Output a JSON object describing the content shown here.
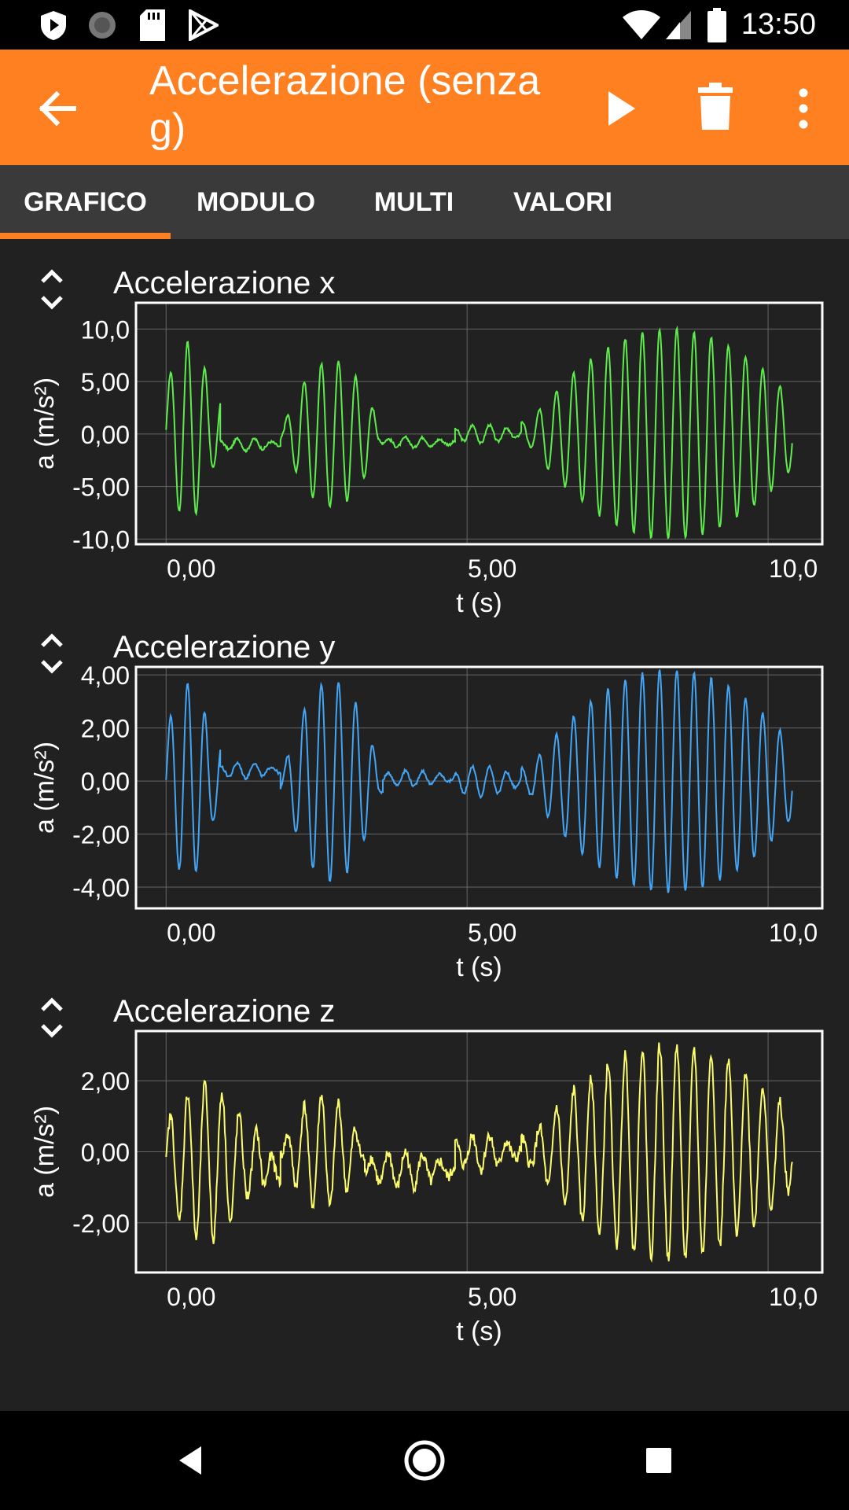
{
  "status_bar": {
    "time": "13:50",
    "icons": [
      "shield-icon",
      "spinner-icon",
      "sd-card-icon",
      "play-store-icon",
      "wifi-icon",
      "signal-icon",
      "battery-icon"
    ]
  },
  "toolbar": {
    "title": "Accelerazione (senza g)",
    "icons": [
      "back-arrow-icon",
      "play-icon",
      "trash-icon",
      "more-vert-icon"
    ]
  },
  "tabs": [
    {
      "label": "GRAFICO",
      "selected": true
    },
    {
      "label": "MODULO",
      "selected": false
    },
    {
      "label": "MULTI",
      "selected": false
    },
    {
      "label": "VALORI",
      "selected": false
    }
  ],
  "colors": {
    "accent": "#ff8021",
    "x_series": "#5ded4b",
    "y_series": "#42a5f5",
    "z_series": "#fbfb6b",
    "background": "#212121"
  },
  "nav_bar": {
    "icons": [
      "back-triangle-icon",
      "home-circle-icon",
      "recents-square-icon"
    ]
  },
  "chart_data": [
    {
      "type": "line",
      "title": "Accelerazione x",
      "xlabel": "t (s)",
      "ylabel": "a (m/s²)",
      "xlim": [
        -0.5,
        10.9
      ],
      "ylim": [
        -10.5,
        12.5
      ],
      "x_ticks": [
        0,
        5,
        10
      ],
      "x_tick_labels": [
        "0,00",
        "5,00",
        "10,0"
      ],
      "y_ticks": [
        10,
        5,
        0,
        -5,
        -10
      ],
      "y_tick_labels": [
        "10,0",
        "5,00",
        "0,00",
        "-5,00",
        "-10,0"
      ],
      "grid": true,
      "series": [
        {
          "color": "#5ded4b",
          "freq": 3.5,
          "noise": 0.25,
          "segments": [
            [
              0.0,
              0.9,
              0.3,
              8.5,
              0.0
            ],
            [
              0.9,
              1.9,
              -1.0,
              0.6,
              0.0
            ],
            [
              1.9,
              3.6,
              0.0,
              7.0,
              0.5
            ],
            [
              3.6,
              4.8,
              -0.8,
              0.5,
              0.0
            ],
            [
              4.8,
              5.9,
              0.0,
              0.9,
              0.0
            ],
            [
              5.9,
              10.4,
              0.0,
              10.0,
              0.55
            ]
          ]
        }
      ]
    },
    {
      "type": "line",
      "title": "Accelerazione y",
      "xlabel": "t (s)",
      "ylabel": "a (m/s²)",
      "xlim": [
        -0.5,
        10.9
      ],
      "ylim": [
        -4.8,
        4.3
      ],
      "x_ticks": [
        0,
        5,
        10
      ],
      "x_tick_labels": [
        "0,00",
        "5,00",
        "10,0"
      ],
      "y_ticks": [
        4,
        2,
        0,
        -2,
        -4
      ],
      "y_tick_labels": [
        "4,00",
        "2,00",
        "0,00",
        "-2,00",
        "-4,00"
      ],
      "grid": true,
      "series": [
        {
          "color": "#42a5f5",
          "freq": 3.5,
          "noise": 0.1,
          "segments": [
            [
              0.0,
              0.9,
              0.0,
              3.7,
              0.0
            ],
            [
              0.9,
              1.9,
              0.4,
              0.3,
              0.0
            ],
            [
              1.9,
              3.6,
              0.0,
              3.8,
              0.5
            ],
            [
              3.6,
              4.8,
              0.1,
              0.3,
              0.0
            ],
            [
              4.8,
              5.9,
              0.0,
              0.6,
              0.0
            ],
            [
              5.9,
              10.4,
              0.0,
              4.2,
              0.55
            ]
          ]
        }
      ]
    },
    {
      "type": "line",
      "title": "Accelerazione z",
      "xlabel": "t (s)",
      "ylabel": "a (m/s²)",
      "xlim": [
        -0.5,
        10.9
      ],
      "ylim": [
        -3.4,
        3.4
      ],
      "x_ticks": [
        0,
        5,
        10
      ],
      "x_tick_labels": [
        "0,00",
        "5,00",
        "10,0"
      ],
      "y_ticks": [
        2,
        0,
        -2
      ],
      "y_tick_labels": [
        "2,00",
        "0,00",
        "-2,00"
      ],
      "grid": true,
      "series": [
        {
          "color": "#fbfb6b",
          "freq": 3.5,
          "noise": 0.35,
          "segments": [
            [
              0.0,
              1.6,
              -0.3,
              2.2,
              0.0
            ],
            [
              1.6,
              1.9,
              -0.6,
              0.5,
              0.0
            ],
            [
              1.9,
              3.3,
              0.0,
              1.6,
              0.5
            ],
            [
              3.3,
              4.8,
              -0.5,
              0.5,
              0.0
            ],
            [
              4.8,
              5.9,
              0.0,
              0.5,
              0.0
            ],
            [
              5.9,
              10.4,
              0.0,
              3.0,
              0.55
            ]
          ]
        }
      ]
    }
  ]
}
